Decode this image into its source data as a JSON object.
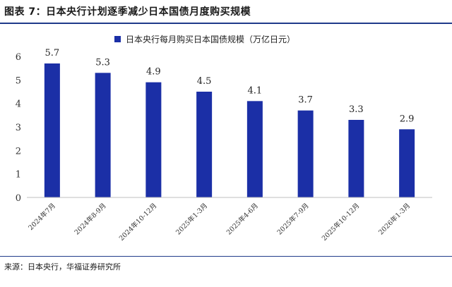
{
  "figure": {
    "title": "图表 7：日本央行计划逐季减少日本国债月度购买规模",
    "source": "来源：日本央行，华福证券研究所"
  },
  "colors": {
    "bar": "#1b2fa6",
    "rule": "#1f3a8a"
  },
  "chart_data": {
    "type": "bar",
    "title": "",
    "xlabel": "",
    "ylabel": "",
    "categories": [
      "2024年7月",
      "2024年8-9月",
      "2024年10-12月",
      "2025年1-3月",
      "2025年4-6月",
      "2025年7-9月",
      "2025年10-12月",
      "2026年1-3月"
    ],
    "series": [
      {
        "name": "日本央行每月购买日本国债规模（万亿日元）",
        "values": [
          5.7,
          5.3,
          4.9,
          4.5,
          4.1,
          3.7,
          3.3,
          2.9
        ]
      }
    ],
    "data_labels": [
      "5.7",
      "5.3",
      "4.9",
      "4.5",
      "4.1",
      "3.7",
      "3.3",
      "2.9"
    ],
    "yticks": [
      0,
      1,
      2,
      3,
      4,
      5,
      6
    ],
    "ylim": [
      0,
      6
    ],
    "grid": false,
    "legend_position": "top-center"
  }
}
